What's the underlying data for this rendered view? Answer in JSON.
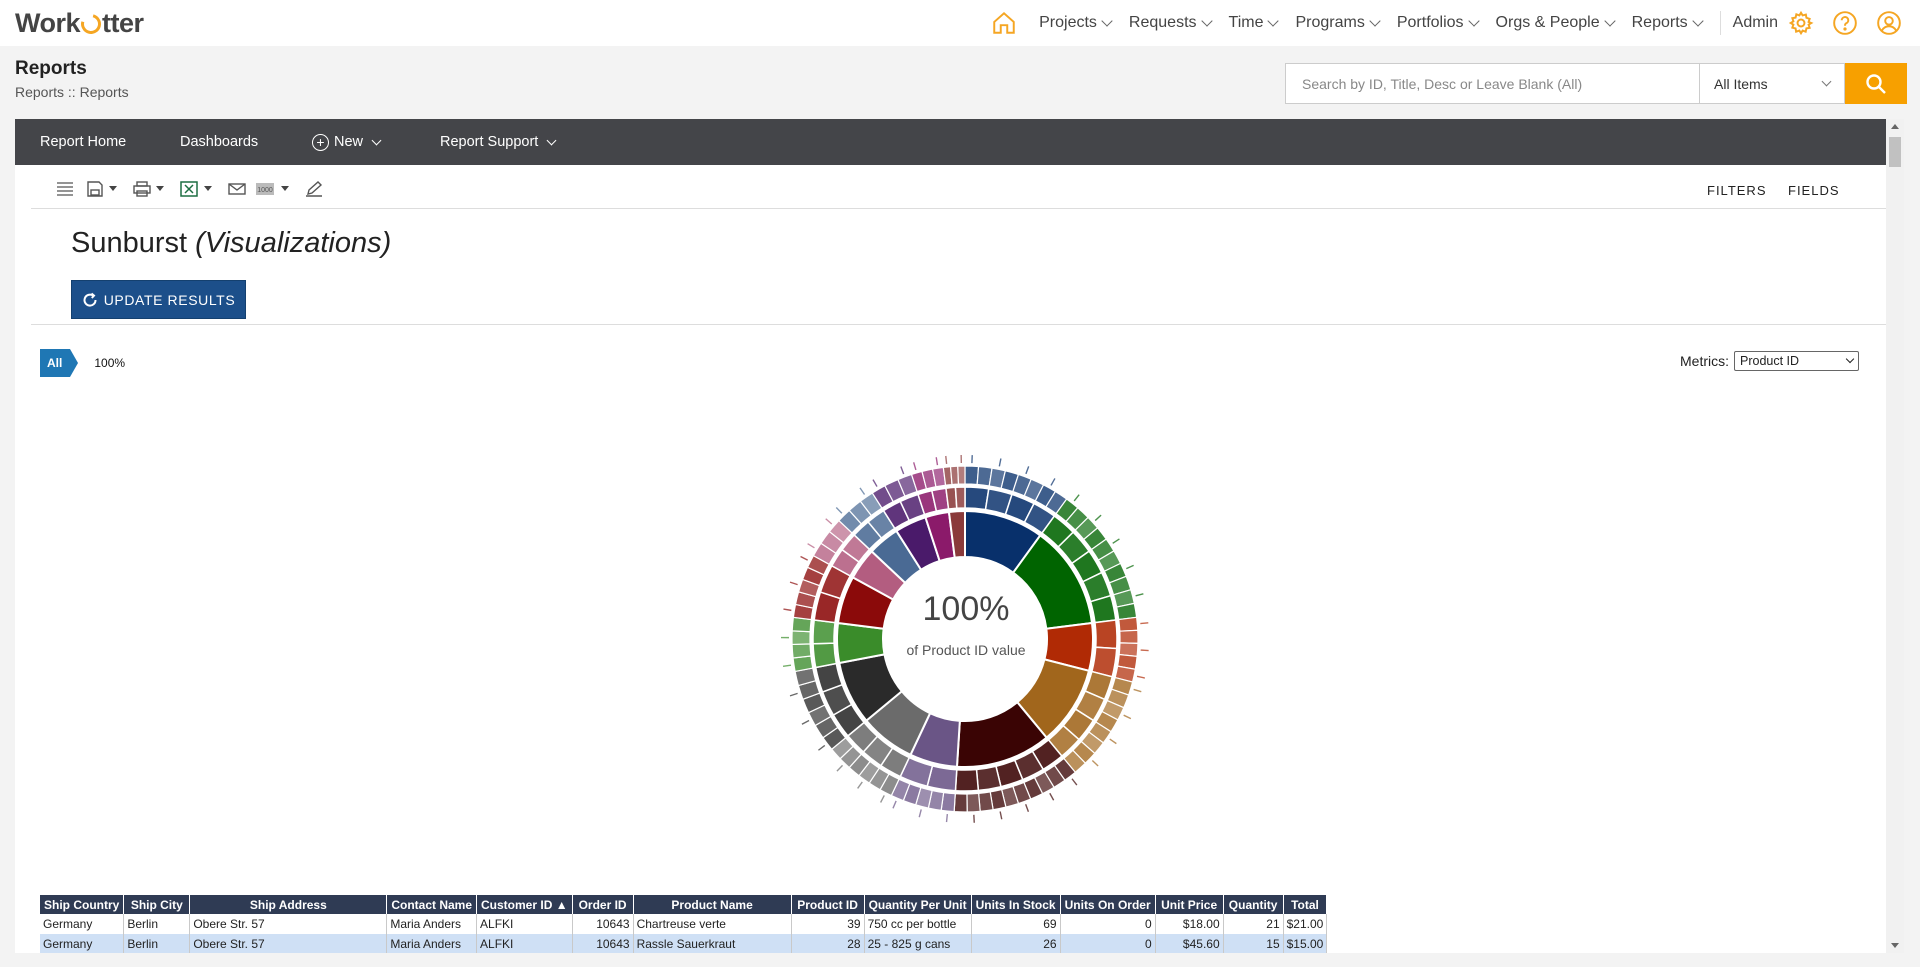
{
  "app": {
    "logo_text_left": "Work",
    "logo_text_right": "tter"
  },
  "nav": {
    "items": [
      {
        "label": "Projects"
      },
      {
        "label": "Requests"
      },
      {
        "label": "Time"
      },
      {
        "label": "Programs"
      },
      {
        "label": "Portfolios"
      },
      {
        "label": "Orgs & People"
      },
      {
        "label": "Reports"
      }
    ],
    "admin": "Admin",
    "accent_color": "#f5a623"
  },
  "header": {
    "title": "Reports",
    "breadcrumb": "Reports :: Reports"
  },
  "search": {
    "placeholder": "Search by ID, Title, Desc or Leave Blank (All)",
    "scope": "All Items"
  },
  "report_nav": {
    "home": "Report Home",
    "dashboards": "Dashboards",
    "new": "New",
    "support": "Report Support"
  },
  "toolbar": {
    "filters": "FILTERS",
    "fields": "FIELDS"
  },
  "viz": {
    "title": "Sunburst",
    "subtitle": "(Visualizations)",
    "update_label": "UPDATE RESULTS",
    "breadcrumb_all": "All",
    "breadcrumb_pct": "100%",
    "metrics_label": "Metrics:",
    "metrics_value": "Product ID",
    "center_value": "100%",
    "center_caption": "of Product ID value"
  },
  "chart_data": {
    "type": "sunburst",
    "center_value": "100%",
    "center_caption": "of Product ID value",
    "rings": 3,
    "segments": [
      {
        "color": "#08306b",
        "share": 0.1
      },
      {
        "color": "#006400",
        "share": 0.13
      },
      {
        "color": "#b02a05",
        "share": 0.06
      },
      {
        "color": "#a1661c",
        "share": 0.1
      },
      {
        "color": "#3a0404",
        "share": 0.12
      },
      {
        "color": "#6a5586",
        "share": 0.06
      },
      {
        "color": "#6b6b6b",
        "share": 0.07
      },
      {
        "color": "#2a2a2a",
        "share": 0.08
      },
      {
        "color": "#3a8c2a",
        "share": 0.05
      },
      {
        "color": "#8b0a0a",
        "share": 0.06
      },
      {
        "color": "#b35d80",
        "share": 0.04
      },
      {
        "color": "#4a6a94",
        "share": 0.04
      },
      {
        "color": "#4a1a6a",
        "share": 0.04
      },
      {
        "color": "#8b1a6a",
        "share": 0.03
      },
      {
        "color": "#8a3a3a",
        "share": 0.02
      }
    ]
  },
  "table": {
    "columns": [
      "Ship Country",
      "Ship City",
      "Ship Address",
      "Contact Name",
      "Customer ID ▲",
      "Order ID",
      "Product Name",
      "Product ID",
      "Quantity Per Unit",
      "Units In Stock",
      "Units On Order",
      "Unit Price",
      "Quantity",
      "Total"
    ],
    "rows": [
      [
        "Germany",
        "Berlin",
        "Obere Str. 57",
        "Maria Anders",
        "ALFKI",
        "10643",
        "Chartreuse verte",
        "39",
        "750 cc per bottle",
        "69",
        "0",
        "$18.00",
        "21",
        "$21.00"
      ],
      [
        "Germany",
        "Berlin",
        "Obere Str. 57",
        "Maria Anders",
        "ALFKI",
        "10643",
        "Rassle Sauerkraut",
        "28",
        "25 - 825 g cans",
        "26",
        "0",
        "$45.60",
        "15",
        "$15.00"
      ]
    ]
  }
}
